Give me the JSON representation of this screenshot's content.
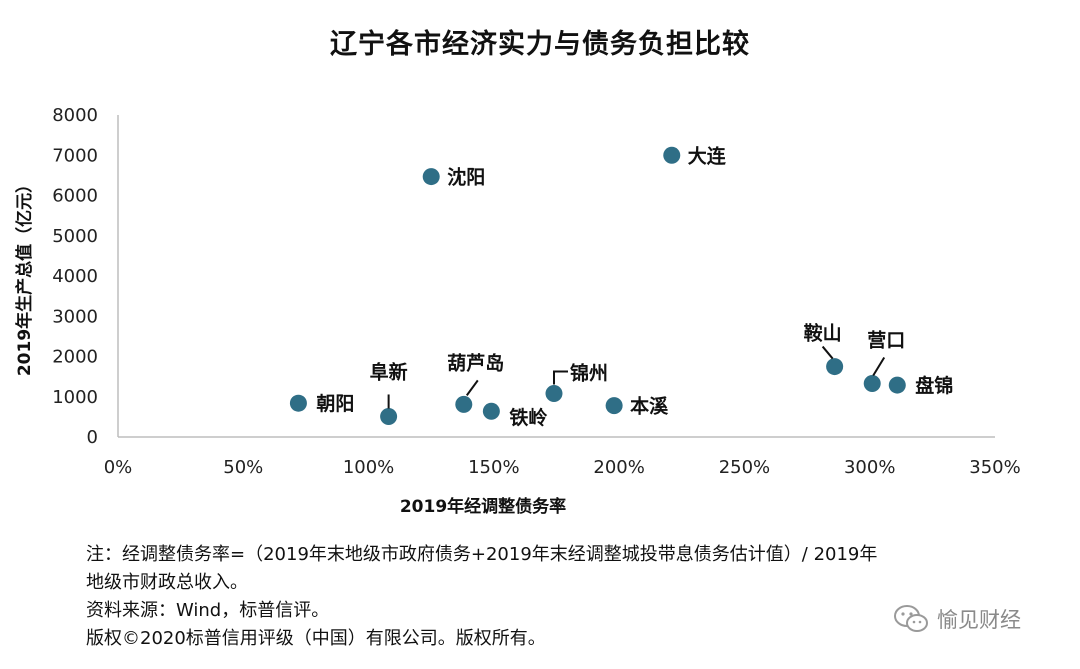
{
  "chart_data": {
    "type": "scatter",
    "title": "辽宁各市经济实力与债务负担比较",
    "xlabel": "2019年经调整债务率",
    "ylabel": "2019年生产总值（亿元）",
    "xlim": [
      0,
      350
    ],
    "ylim": [
      0,
      8000
    ],
    "xticks": [
      "0%",
      "50%",
      "100%",
      "150%",
      "200%",
      "250%",
      "300%",
      "350%"
    ],
    "yticks": [
      "0",
      "1000",
      "2000",
      "3000",
      "4000",
      "5000",
      "6000",
      "7000",
      "8000"
    ],
    "grid": false,
    "marker_color": "#2f6e86",
    "points": [
      {
        "label": "朝阳",
        "x": 72,
        "y": 840
      },
      {
        "label": "阜新",
        "x": 108,
        "y": 510
      },
      {
        "label": "沈阳",
        "x": 125,
        "y": 6470
      },
      {
        "label": "葫芦岛",
        "x": 138,
        "y": 810
      },
      {
        "label": "铁岭",
        "x": 149,
        "y": 640
      },
      {
        "label": "锦州",
        "x": 174,
        "y": 1080
      },
      {
        "label": "本溪",
        "x": 198,
        "y": 780
      },
      {
        "label": "大连",
        "x": 221,
        "y": 7000
      },
      {
        "label": "鞍山",
        "x": 286,
        "y": 1750
      },
      {
        "label": "营口",
        "x": 301,
        "y": 1330
      },
      {
        "label": "盘锦",
        "x": 311,
        "y": 1290
      }
    ]
  },
  "notes": [
    "注：经调整债务率=（2019年末地级市政府债务+2019年末经调整城投带息债务估计值）/ 2019年",
    "地级市财政总收入。",
    "资料来源：Wind，标普信评。",
    "版权©2020标普信用评级（中国）有限公司。版权所有。"
  ],
  "watermark": {
    "text": "愉见财经",
    "icon": "wechat-icon"
  }
}
